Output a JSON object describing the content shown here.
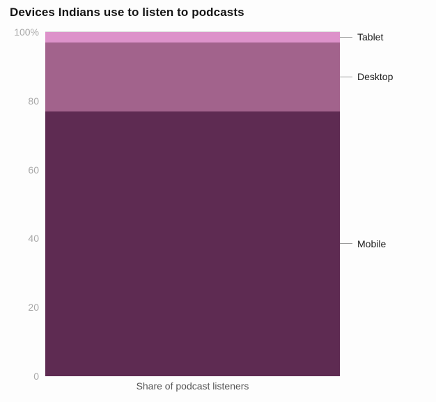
{
  "title": "Devices Indians use to listen to podcasts",
  "colors": {
    "mobile": "#5e2b52",
    "desktop": "#a2638c",
    "tablet": "#dd92ca",
    "background": "#fdfdfd",
    "gridline": "#dcdcdc",
    "tick_text": "#a8a8a8"
  },
  "chart_data": {
    "type": "bar",
    "stacked": true,
    "categories": [
      "Share of podcast listeners"
    ],
    "series": [
      {
        "name": "Mobile",
        "value": 77,
        "color": "#5e2b52"
      },
      {
        "name": "Desktop",
        "value": 20,
        "color": "#a2638c"
      },
      {
        "name": "Tablet",
        "value": 3,
        "color": "#dd92ca"
      }
    ],
    "title": "Devices Indians use to listen to podcasts",
    "xlabel": "Share of podcast listeners",
    "ylabel": "",
    "ylim": [
      0,
      100
    ],
    "yticks": [
      "0",
      "20",
      "40",
      "60",
      "80",
      "100%"
    ],
    "grid": "top-line-only",
    "legend_position": "right-annotations"
  }
}
